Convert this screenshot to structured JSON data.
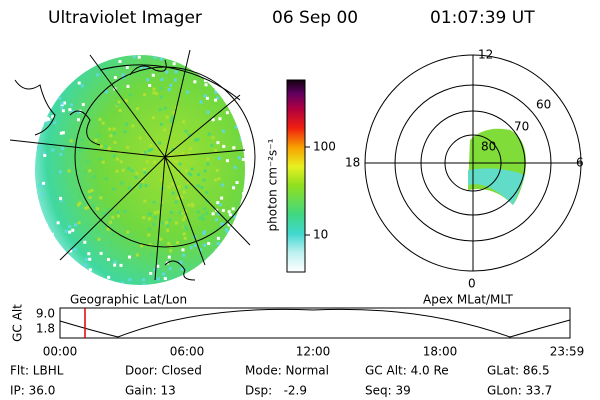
{
  "header": {
    "instrument": "Ultraviolet Imager",
    "date": "06 Sep 00",
    "time": "01:07:39 UT"
  },
  "colorbar": {
    "label": "photon cm⁻²s⁻¹",
    "ticks": [
      "100",
      "10"
    ]
  },
  "polar": {
    "labels": [
      "12",
      "18",
      "6",
      "0",
      "60",
      "70",
      "80"
    ]
  },
  "captions": {
    "left": "Geographic Lat/Lon",
    "right": "Apex MLat/MLT"
  },
  "timeline": {
    "axis_label": "GC Alt",
    "y_labels": [
      "9.0",
      "1.8"
    ],
    "x_labels": [
      "00:00",
      "06:00",
      "12:00",
      "18:00",
      "23:59"
    ]
  },
  "info": {
    "rows": [
      [
        "Flt: LBHL",
        "Door: Closed",
        "Mode: Normal",
        "GC Alt: 4.0 Re",
        "GLat: 86.5"
      ],
      [
        "IP: 36.0",
        "Gain: 13",
        "Dsp:   -2.9",
        "Seq: 39",
        "GLon: 33.7"
      ]
    ]
  }
}
